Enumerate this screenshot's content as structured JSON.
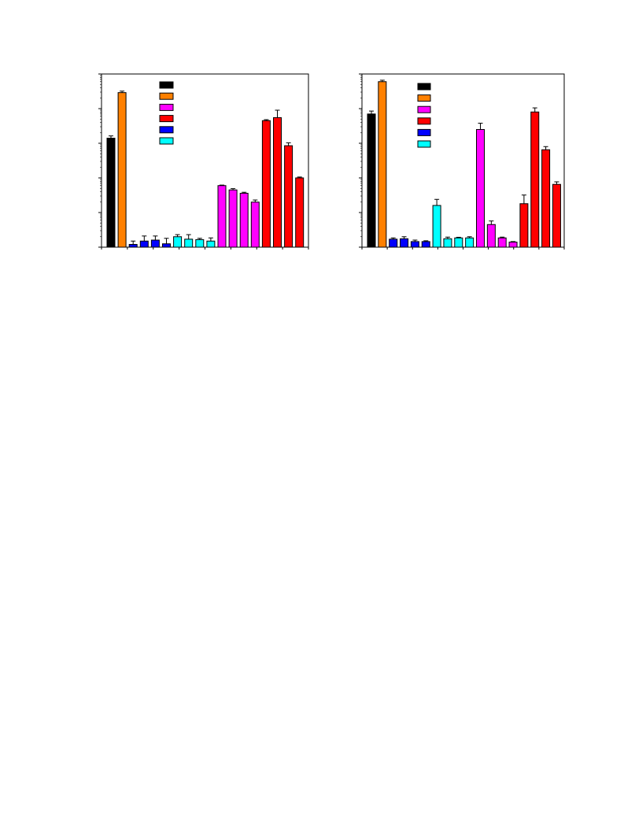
{
  "chart_data": [
    {
      "type": "bar",
      "scale": "log",
      "ylim": [
        1,
        100000
      ],
      "grid": false,
      "legend_position": "top-center",
      "legend_entries": [
        {
          "color": "#000000"
        },
        {
          "color": "#ff8000"
        },
        {
          "color": "#ff00ff"
        },
        {
          "color": "#ff0000"
        },
        {
          "color": "#0000ff"
        },
        {
          "color": "#00ffff"
        }
      ],
      "bars": [
        {
          "value": 1400,
          "error": 230,
          "color": "#000000"
        },
        {
          "value": 29000,
          "error": 3000,
          "color": "#ff8000"
        },
        {
          "value": 1.2,
          "error": 0.3,
          "color": "#0000ff"
        },
        {
          "value": 1.5,
          "error": 0.6,
          "color": "#0000ff"
        },
        {
          "value": 1.6,
          "error": 0.5,
          "color": "#0000ff"
        },
        {
          "value": 1.25,
          "error": 0.55,
          "color": "#0000ff"
        },
        {
          "value": 2.0,
          "error": 0.3,
          "color": "#00ffff"
        },
        {
          "value": 1.7,
          "error": 0.6,
          "color": "#00ffff"
        },
        {
          "value": 1.65,
          "error": 0.15,
          "color": "#00ffff"
        },
        {
          "value": 1.5,
          "error": 0.35,
          "color": "#00ffff"
        },
        {
          "value": 60,
          "error": 2,
          "color": "#ff00ff"
        },
        {
          "value": 45,
          "error": 4,
          "color": "#ff00ff"
        },
        {
          "value": 36,
          "error": 2.5,
          "color": "#ff00ff"
        },
        {
          "value": 20,
          "error": 3,
          "color": "#ff00ff"
        },
        {
          "value": 4500,
          "error": 300,
          "color": "#ff0000"
        },
        {
          "value": 5500,
          "error": 3500,
          "color": "#ff0000"
        },
        {
          "value": 850,
          "error": 180,
          "color": "#ff0000"
        },
        {
          "value": 100,
          "error": 6,
          "color": "#ff0000"
        }
      ],
      "x_tick_count": 8
    },
    {
      "type": "bar",
      "scale": "log",
      "ylim": [
        1,
        100000
      ],
      "grid": false,
      "legend_position": "top-center",
      "legend_entries": [
        {
          "color": "#000000"
        },
        {
          "color": "#ff8000"
        },
        {
          "color": "#ff00ff"
        },
        {
          "color": "#ff0000"
        },
        {
          "color": "#0000ff"
        },
        {
          "color": "#00ffff"
        }
      ],
      "bars": [
        {
          "value": 7000,
          "error": 1500,
          "color": "#000000"
        },
        {
          "value": 60000,
          "error": 6000,
          "color": "#ff8000"
        },
        {
          "value": 1.7,
          "error": 0.15,
          "color": "#0000ff"
        },
        {
          "value": 1.75,
          "error": 0.25,
          "color": "#0000ff"
        },
        {
          "value": 1.45,
          "error": 0.15,
          "color": "#0000ff"
        },
        {
          "value": 1.45,
          "error": 0.08,
          "color": "#0000ff"
        },
        {
          "value": 16,
          "error": 8,
          "color": "#00ffff"
        },
        {
          "value": 1.75,
          "error": 0.2,
          "color": "#00ffff"
        },
        {
          "value": 1.85,
          "error": 0.08,
          "color": "#00ffff"
        },
        {
          "value": 1.85,
          "error": 0.15,
          "color": "#00ffff"
        },
        {
          "value": 2500,
          "error": 1300,
          "color": "#ff00ff"
        },
        {
          "value": 4.5,
          "error": 1.2,
          "color": "#ff00ff"
        },
        {
          "value": 1.85,
          "error": 0.1,
          "color": "#ff00ff"
        },
        {
          "value": 1.4,
          "error": 0.05,
          "color": "#ff00ff"
        },
        {
          "value": 18,
          "error": 14,
          "color": "#ff0000"
        },
        {
          "value": 8000,
          "error": 2500,
          "color": "#ff0000"
        },
        {
          "value": 650,
          "error": 150,
          "color": "#ff0000"
        },
        {
          "value": 65,
          "error": 12,
          "color": "#ff0000"
        }
      ],
      "x_tick_count": 8
    }
  ]
}
